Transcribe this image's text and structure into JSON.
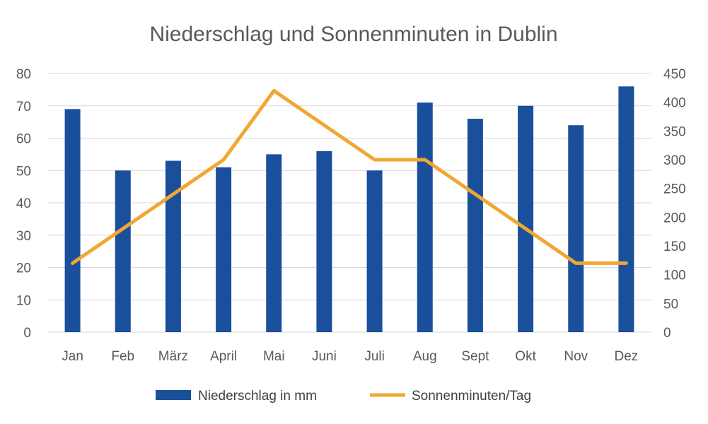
{
  "chart_data": {
    "type": "bar",
    "title": "Niederschlag und Sonnenminuten in Dublin",
    "categories": [
      "Jan",
      "Feb",
      "März",
      "April",
      "Mai",
      "Juni",
      "Juli",
      "Aug",
      "Sept",
      "Okt",
      "Nov",
      "Dez"
    ],
    "series": [
      {
        "name": "Niederschlag in mm",
        "type": "bar",
        "axis": "left",
        "color": "#1a4f9c",
        "values": [
          69,
          50,
          53,
          51,
          55,
          56,
          50,
          71,
          66,
          70,
          64,
          76
        ]
      },
      {
        "name": "Sonnenminuten/Tag",
        "type": "line",
        "axis": "right",
        "color": "#f0a733",
        "values": [
          120,
          180,
          240,
          300,
          420,
          360,
          300,
          300,
          240,
          180,
          120,
          120
        ]
      }
    ],
    "y_left": {
      "min": 0,
      "max": 80,
      "step": 10,
      "ticks": [
        "0",
        "10",
        "20",
        "30",
        "40",
        "50",
        "60",
        "70",
        "80"
      ]
    },
    "y_right": {
      "min": 0,
      "max": 450,
      "step": 50,
      "ticks": [
        "0",
        "50",
        "100",
        "150",
        "200",
        "250",
        "300",
        "350",
        "400",
        "450"
      ]
    },
    "grid": true,
    "legend_position": "bottom"
  }
}
